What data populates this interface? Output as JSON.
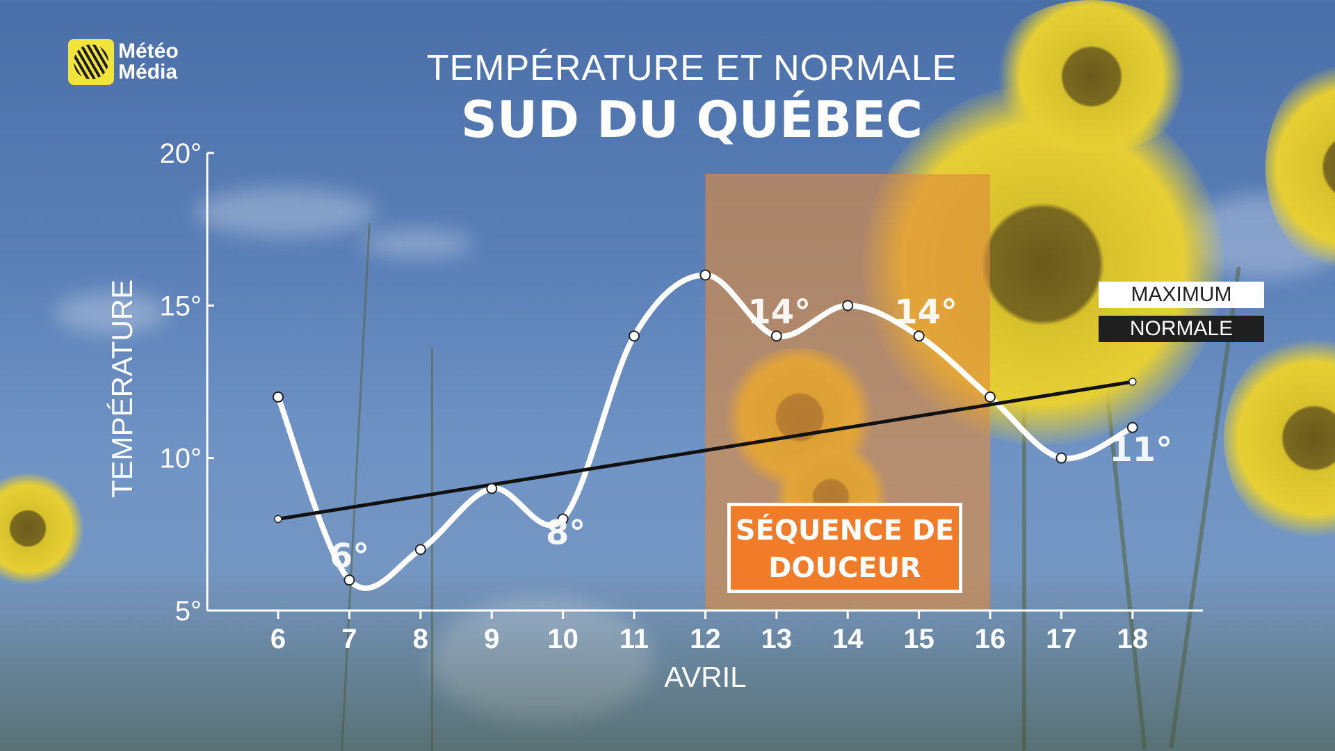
{
  "brand": {
    "line1": "Météo",
    "line2": "Média"
  },
  "title": {
    "top": "TEMPÉRATURE ET NORMALE",
    "main": "SUD DU QUÉBEC"
  },
  "legend": {
    "maximum": "MAXIMUM",
    "normale": "NORMALE"
  },
  "callout": {
    "line1": "SÉQUENCE DE",
    "line2": "DOUCEUR"
  },
  "colors": {
    "maximum_line": "#ffffff",
    "normale_line": "#111111",
    "highlight": "#e08a3c",
    "callout": "#f07c2a"
  },
  "chart_data": {
    "type": "line",
    "xlabel": "AVRIL",
    "ylabel": "TEMPÉRATURE",
    "x": [
      6,
      7,
      8,
      9,
      10,
      11,
      12,
      13,
      14,
      15,
      16,
      17,
      18
    ],
    "x_tick_labels": [
      "6",
      "7",
      "8",
      "9",
      "10",
      "11",
      "12",
      "13",
      "14",
      "15",
      "16",
      "17",
      "18"
    ],
    "ylim": [
      5,
      20
    ],
    "y_ticks": [
      5,
      10,
      15,
      20
    ],
    "y_tick_labels": [
      "5°",
      "10°",
      "15°",
      "20°"
    ],
    "series": [
      {
        "name": "MAXIMUM",
        "values": [
          12,
          6,
          7,
          9,
          8,
          14,
          16,
          14,
          15,
          14,
          12,
          10,
          11
        ]
      },
      {
        "name": "NORMALE",
        "values": [
          8,
          null,
          null,
          null,
          null,
          null,
          null,
          null,
          null,
          null,
          null,
          null,
          12.5
        ]
      }
    ],
    "data_labels": [
      {
        "x": 7,
        "text": "6°"
      },
      {
        "x": 10,
        "text": "8°"
      },
      {
        "x": 13,
        "text": "14°"
      },
      {
        "x": 15,
        "text": "14°"
      },
      {
        "x": 18,
        "text": "11°"
      }
    ],
    "highlight_range": [
      12,
      16
    ]
  }
}
